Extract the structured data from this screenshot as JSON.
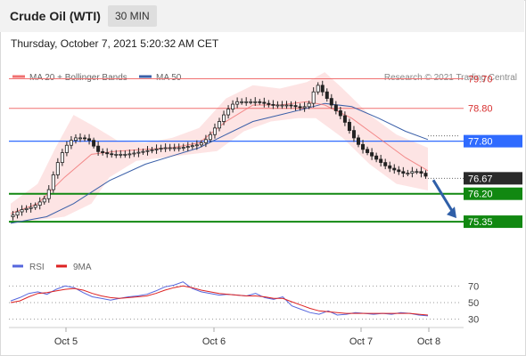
{
  "header": {
    "title": "Crude Oil (WTI)",
    "interval": "30 MIN"
  },
  "datetime": "Thursday, October 7, 2021 5:20:32 AM CET",
  "credit": "Research © 2021 Trading Central",
  "colors": {
    "bollinger": "#f07070",
    "band_fill": "#fde1e1",
    "ma50": "#3a5fa8",
    "candle": "#222222",
    "blue_level": "#2f6bff",
    "green_level": "#118811",
    "price_box": "#2a2a2a",
    "rsi": "#5566dd",
    "ma9": "#dd2222",
    "arrow": "#2f5fa8"
  },
  "chart_data": [
    {
      "type": "candlestick",
      "legend": [
        {
          "name": "MA 20 + Bollinger Bands",
          "color": "#f07070"
        },
        {
          "name": "MA 50",
          "color": "#3a5fa8"
        }
      ],
      "x_ticks": [
        "Oct 5",
        "Oct 6",
        "Oct 7",
        "Oct 8"
      ],
      "ylim": [
        75.0,
        80.2
      ],
      "levels": [
        {
          "value": 79.7,
          "label": "79.70",
          "kind": "resistance"
        },
        {
          "value": 78.8,
          "label": "78.80",
          "kind": "resistance"
        },
        {
          "value": 77.8,
          "label": "77.80",
          "kind": "pivot"
        },
        {
          "value": 76.2,
          "label": "76.20",
          "kind": "support"
        },
        {
          "value": 75.35,
          "label": "75.35",
          "kind": "support"
        }
      ],
      "current_price": {
        "value": 76.67,
        "label": "76.67"
      },
      "projection": {
        "from": 76.67,
        "to": 75.35
      },
      "price_path": [
        [
          0,
          75.5
        ],
        [
          2,
          75.7
        ],
        [
          5,
          75.8
        ],
        [
          8,
          76.1
        ],
        [
          10,
          77.0
        ],
        [
          12,
          77.6
        ],
        [
          14,
          77.9
        ],
        [
          16,
          77.9
        ],
        [
          18,
          77.8
        ],
        [
          19,
          77.5
        ],
        [
          22,
          77.4
        ],
        [
          26,
          77.4
        ],
        [
          30,
          77.5
        ],
        [
          34,
          77.6
        ],
        [
          38,
          77.6
        ],
        [
          42,
          77.7
        ],
        [
          44,
          77.9
        ],
        [
          46,
          78.3
        ],
        [
          48,
          78.7
        ],
        [
          50,
          79.0
        ],
        [
          52,
          79.0
        ],
        [
          55,
          79.0
        ],
        [
          58,
          78.9
        ],
        [
          62,
          78.9
        ],
        [
          65,
          78.8
        ],
        [
          67,
          79.0
        ],
        [
          68,
          79.6
        ],
        [
          70,
          79.2
        ],
        [
          72,
          78.8
        ],
        [
          74,
          78.5
        ],
        [
          76,
          78.0
        ],
        [
          78,
          77.6
        ],
        [
          80,
          77.4
        ],
        [
          82,
          77.2
        ],
        [
          84,
          77.0
        ],
        [
          86,
          76.9
        ],
        [
          88,
          76.8
        ],
        [
          90,
          76.9
        ],
        [
          92,
          76.8
        ],
        [
          93,
          76.67
        ]
      ],
      "ma20_path": [
        [
          0,
          75.6
        ],
        [
          6,
          75.9
        ],
        [
          12,
          76.7
        ],
        [
          18,
          77.4
        ],
        [
          24,
          77.5
        ],
        [
          30,
          77.55
        ],
        [
          36,
          77.6
        ],
        [
          42,
          77.75
        ],
        [
          48,
          78.4
        ],
        [
          54,
          78.9
        ],
        [
          60,
          78.9
        ],
        [
          66,
          79.0
        ],
        [
          70,
          78.9
        ],
        [
          76,
          78.5
        ],
        [
          82,
          77.9
        ],
        [
          88,
          77.3
        ],
        [
          93,
          76.9
        ]
      ],
      "ma50_path": [
        [
          0,
          75.3
        ],
        [
          8,
          75.5
        ],
        [
          14,
          75.9
        ],
        [
          22,
          76.6
        ],
        [
          30,
          77.1
        ],
        [
          36,
          77.35
        ],
        [
          42,
          77.6
        ],
        [
          48,
          78.0
        ],
        [
          54,
          78.4
        ],
        [
          60,
          78.6
        ],
        [
          66,
          78.8
        ],
        [
          70,
          78.95
        ],
        [
          76,
          78.85
        ],
        [
          82,
          78.5
        ],
        [
          88,
          78.1
        ],
        [
          93,
          77.85
        ]
      ],
      "band_upper": [
        [
          0,
          75.9
        ],
        [
          6,
          76.5
        ],
        [
          10,
          77.6
        ],
        [
          14,
          78.6
        ],
        [
          18,
          78.3
        ],
        [
          24,
          77.8
        ],
        [
          30,
          77.75
        ],
        [
          36,
          77.9
        ],
        [
          42,
          78.2
        ],
        [
          48,
          79.1
        ],
        [
          54,
          79.5
        ],
        [
          60,
          79.4
        ],
        [
          66,
          79.6
        ],
        [
          70,
          79.9
        ],
        [
          74,
          79.4
        ],
        [
          80,
          78.6
        ],
        [
          86,
          78.0
        ],
        [
          93,
          77.6
        ]
      ],
      "band_lower": [
        [
          0,
          75.3
        ],
        [
          6,
          75.4
        ],
        [
          12,
          75.5
        ],
        [
          18,
          75.9
        ],
        [
          22,
          76.7
        ],
        [
          28,
          77.2
        ],
        [
          34,
          77.3
        ],
        [
          40,
          77.4
        ],
        [
          46,
          77.5
        ],
        [
          52,
          78.1
        ],
        [
          58,
          78.4
        ],
        [
          64,
          78.5
        ],
        [
          68,
          78.5
        ],
        [
          74,
          77.9
        ],
        [
          80,
          77.1
        ],
        [
          86,
          76.5
        ],
        [
          93,
          76.3
        ]
      ]
    },
    {
      "type": "line",
      "legend": [
        {
          "name": "RSI",
          "color": "#5566dd"
        },
        {
          "name": "9MA",
          "color": "#dd2222"
        }
      ],
      "ylim": [
        20,
        80
      ],
      "levels": [
        70,
        50,
        30
      ],
      "series": [
        {
          "name": "RSI",
          "values": [
            52,
            56,
            61,
            63,
            60,
            66,
            70,
            68,
            62,
            57,
            55,
            53,
            55,
            57,
            58,
            60,
            64,
            69,
            71,
            75,
            67,
            63,
            61,
            59,
            60,
            59,
            58,
            61,
            56,
            54,
            57,
            46,
            42,
            38,
            36,
            40,
            35,
            36,
            38,
            37,
            36,
            37,
            36,
            38,
            37,
            35,
            34
          ]
        },
        {
          "name": "9MA",
          "values": [
            50,
            52,
            57,
            61,
            62,
            64,
            66,
            67,
            65,
            61,
            58,
            56,
            55,
            56,
            57,
            58,
            61,
            65,
            68,
            70,
            68,
            65,
            63,
            61,
            60,
            59,
            58,
            58,
            57,
            55,
            55,
            51,
            47,
            43,
            40,
            39,
            38,
            37,
            37,
            37,
            37,
            37,
            37,
            37,
            37,
            36,
            35
          ]
        }
      ]
    }
  ]
}
